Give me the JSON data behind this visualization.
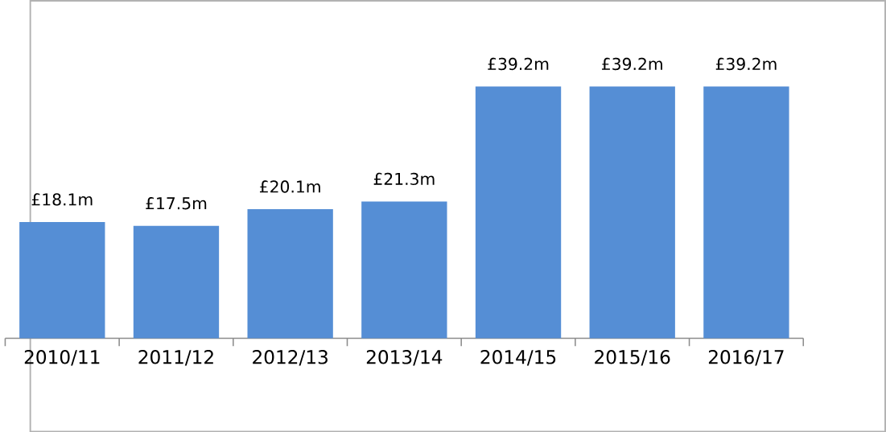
{
  "chart_data": {
    "type": "bar",
    "categories": [
      "2010/11",
      "2011/12",
      "2012/13",
      "2013/14",
      "2014/15",
      "2015/16",
      "2016/17"
    ],
    "values": [
      18.1,
      17.5,
      20.1,
      21.3,
      39.2,
      39.2,
      39.2
    ],
    "value_labels": [
      "£18.1m",
      "£17.5m",
      "£20.1m",
      "£21.3m",
      "£39.2m",
      "£39.2m",
      "£39.2m"
    ],
    "color": "#558ed5"
  }
}
